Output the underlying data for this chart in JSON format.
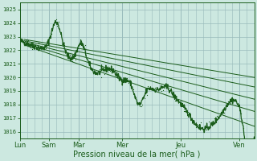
{
  "bg_color": "#cce8e0",
  "grid_color": "#99bbbb",
  "line_color": "#1a5c1a",
  "ylabel_ticks": [
    1016,
    1017,
    1018,
    1019,
    1020,
    1021,
    1022,
    1023,
    1024,
    1025
  ],
  "ylim": [
    1015.5,
    1025.5
  ],
  "xlabel": "Pression niveau de la mer( hPa )",
  "xlabel_fontsize": 7,
  "tick_labels_x": [
    "Lun",
    "Sam",
    "Mar",
    "Mer",
    "Jeu",
    "Ven"
  ],
  "tick_positions_x": [
    0.0,
    1.0,
    2.0,
    3.5,
    5.5,
    7.5
  ],
  "xlim": [
    0.0,
    8.0
  ],
  "minor_vert_positions": [
    0.25,
    0.5,
    0.75,
    1.25,
    1.5,
    1.75,
    2.25,
    2.5,
    2.75,
    3.0,
    3.25,
    3.75,
    4.0,
    4.25,
    4.5,
    4.75,
    5.0,
    5.25,
    5.75,
    6.0,
    6.25,
    6.5,
    6.75,
    7.0,
    7.25,
    7.75
  ],
  "major_vert_positions": [
    0.0,
    1.0,
    2.0,
    3.5,
    5.5,
    7.5
  ],
  "forecast_lines": [
    {
      "x0": 0.15,
      "y0": 1022.8,
      "x1": 8.0,
      "y1": 1020.0
    },
    {
      "x0": 0.15,
      "y0": 1022.7,
      "x1": 8.0,
      "y1": 1019.3
    },
    {
      "x0": 0.15,
      "y0": 1022.6,
      "x1": 8.0,
      "y1": 1018.4
    },
    {
      "x0": 0.15,
      "y0": 1022.5,
      "x1": 8.0,
      "y1": 1017.5
    },
    {
      "x0": 0.15,
      "y0": 1022.4,
      "x1": 8.0,
      "y1": 1016.4
    }
  ]
}
